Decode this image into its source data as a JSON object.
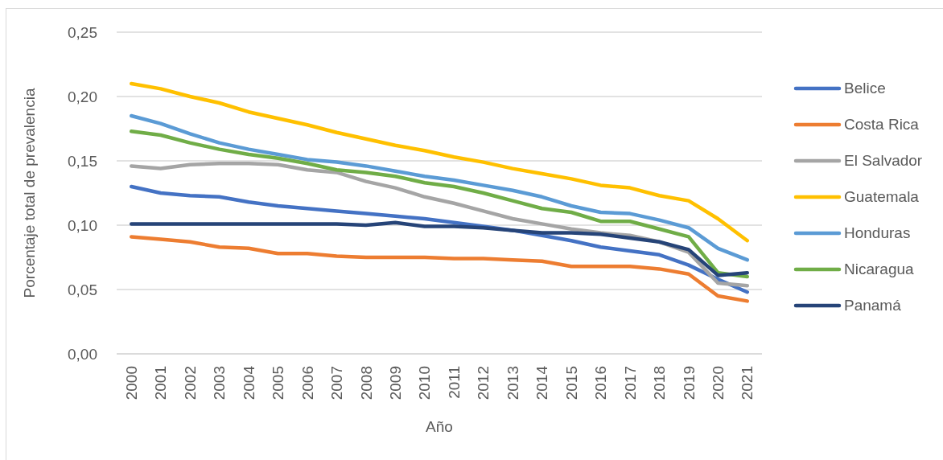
{
  "chart_data": {
    "type": "line",
    "xlabel": "Año",
    "ylabel": "Porcentaje total de prevalencia",
    "categories": [
      "2000",
      "2001",
      "2002",
      "2003",
      "2004",
      "2005",
      "2006",
      "2007",
      "2008",
      "2009",
      "2010",
      "2011",
      "2012",
      "2013",
      "2014",
      "2015",
      "2016",
      "2017",
      "2018",
      "2019",
      "2020",
      "2021"
    ],
    "series": [
      {
        "name": "Belice",
        "color": "#4472c4",
        "values": [
          0.13,
          0.125,
          0.123,
          0.122,
          0.118,
          0.115,
          0.113,
          0.111,
          0.109,
          0.107,
          0.105,
          0.102,
          0.099,
          0.096,
          0.092,
          0.088,
          0.083,
          0.08,
          0.077,
          0.069,
          0.058,
          0.048
        ]
      },
      {
        "name": "Costa Rica",
        "color": "#ed7d31",
        "values": [
          0.091,
          0.089,
          0.087,
          0.083,
          0.082,
          0.078,
          0.078,
          0.076,
          0.075,
          0.075,
          0.075,
          0.074,
          0.074,
          0.073,
          0.072,
          0.068,
          0.068,
          0.068,
          0.066,
          0.062,
          0.045,
          0.041
        ]
      },
      {
        "name": "El Salvador",
        "color": "#a5a5a5",
        "values": [
          0.146,
          0.144,
          0.147,
          0.148,
          0.148,
          0.147,
          0.143,
          0.141,
          0.134,
          0.129,
          0.122,
          0.117,
          0.111,
          0.105,
          0.101,
          0.097,
          0.094,
          0.092,
          0.087,
          0.079,
          0.055,
          0.053
        ]
      },
      {
        "name": "Guatemala",
        "color": "#ffc000",
        "values": [
          0.21,
          0.206,
          0.2,
          0.195,
          0.188,
          0.183,
          0.178,
          0.172,
          0.167,
          0.162,
          0.158,
          0.153,
          0.149,
          0.144,
          0.14,
          0.136,
          0.131,
          0.129,
          0.123,
          0.119,
          0.105,
          0.088
        ]
      },
      {
        "name": "Honduras",
        "color": "#5b9bd5",
        "values": [
          0.185,
          0.179,
          0.171,
          0.164,
          0.159,
          0.155,
          0.151,
          0.149,
          0.146,
          0.142,
          0.138,
          0.135,
          0.131,
          0.127,
          0.122,
          0.115,
          0.11,
          0.109,
          0.104,
          0.098,
          0.082,
          0.073
        ]
      },
      {
        "name": "Nicaragua",
        "color": "#70ad47",
        "values": [
          0.173,
          0.17,
          0.164,
          0.159,
          0.155,
          0.152,
          0.148,
          0.143,
          0.141,
          0.138,
          0.133,
          0.13,
          0.125,
          0.119,
          0.113,
          0.11,
          0.103,
          0.103,
          0.097,
          0.091,
          0.063,
          0.06
        ]
      },
      {
        "name": "Panamá",
        "color": "#264478",
        "values": [
          0.101,
          0.101,
          0.101,
          0.101,
          0.101,
          0.101,
          0.101,
          0.101,
          0.1,
          0.102,
          0.099,
          0.099,
          0.098,
          0.096,
          0.094,
          0.094,
          0.093,
          0.09,
          0.087,
          0.081,
          0.061,
          0.063
        ]
      }
    ],
    "ylim": [
      0,
      0.25
    ],
    "yticks": [
      {
        "value": 0,
        "label": "0,00"
      },
      {
        "value": 0.05,
        "label": "0,05"
      },
      {
        "value": 0.1,
        "label": "0,10"
      },
      {
        "value": 0.15,
        "label": "0,15"
      },
      {
        "value": 0.2,
        "label": "0,20"
      },
      {
        "value": 0.25,
        "label": "0,25"
      }
    ],
    "grid": "y",
    "legend": "right",
    "marker": "none",
    "line_style": "solid"
  }
}
